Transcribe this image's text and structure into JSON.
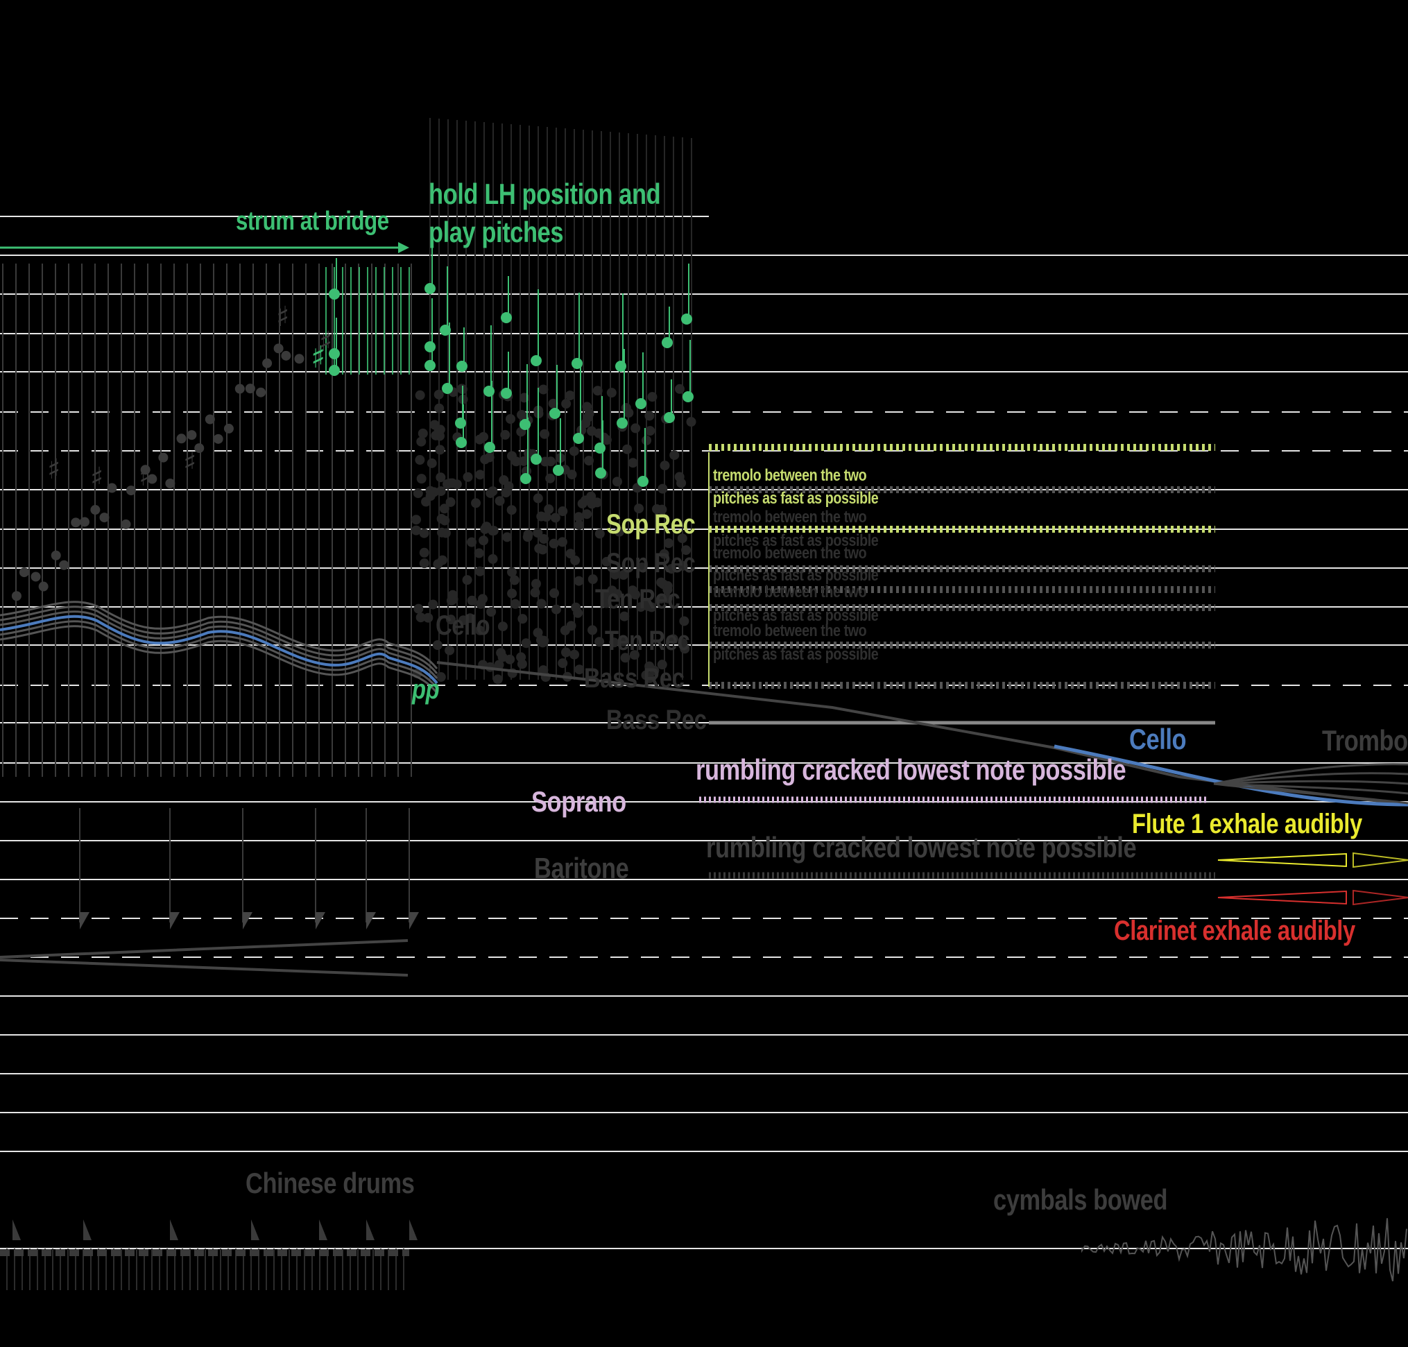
{
  "labels": {
    "strum_at_bridge": "strum at bridge",
    "hold_lh_line1": "hold LH position and",
    "hold_lh_line2": "play pitches",
    "tremolo_line1": "tremolo between the two",
    "tremolo_line2": "pitches as fast as possible",
    "sop_rec": "Sop Rec",
    "alto_rec": "Sop Rec",
    "tenor_rec": "Ten Rec",
    "tenor_rec_2": "Ten Rec",
    "bass_rec": "Bass Rec",
    "bass_rec_2": "Bass Rec",
    "cello_faint": "Cello",
    "pp": "pp",
    "cello": "Cello",
    "trombone": "Trombo",
    "rumbling_soprano": "rumbling cracked lowest note possible",
    "soprano": "Soprano",
    "rumbling_baritone": "rumbling cracked  lowest note possible",
    "baritone": "Baritone",
    "flute": "Flute 1  exhale audibly",
    "clarinet": "Clarinet exhale audibly",
    "chinese_drums": "Chinese drums",
    "cymbals_bowed": "cymbals bowed"
  },
  "colors": {
    "background": "#000000",
    "staff_line": "#e6e6e6",
    "guitar_green": "#3dbf73",
    "recorder_yellow_green": "#c6dc6f",
    "muted_grey": "#3d3d3d",
    "voice_lilac": "#d7b6dc",
    "cello_blue": "#4c7bbd",
    "flute_yellow": "#eaea2e",
    "clarinet_red": "#d8302e"
  }
}
